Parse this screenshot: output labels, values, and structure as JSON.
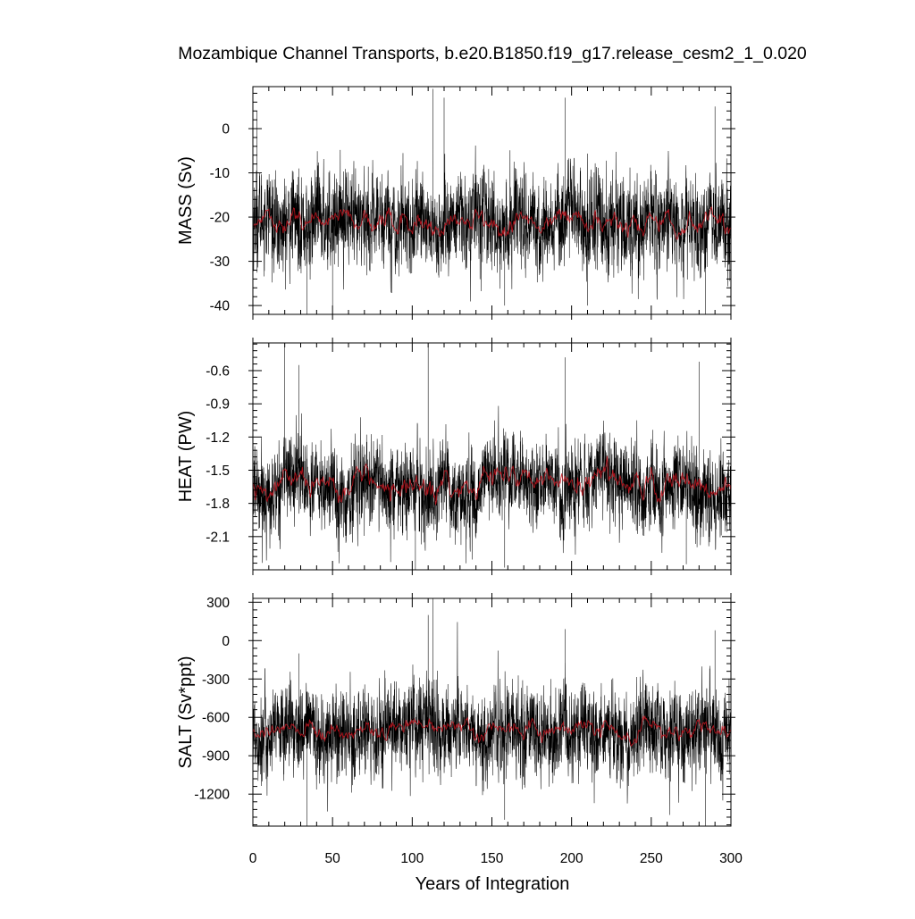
{
  "chart_data": {
    "type": "line",
    "title": "Mozambique Channel Transports, b.e20.B1850.f19_g17.release_cesm2_1_0.020",
    "xlabel": "Years of Integration",
    "xlim": [
      0,
      300
    ],
    "xticks": [
      0,
      50,
      100,
      150,
      200,
      250,
      300
    ],
    "xtick_labels": [
      "0",
      "50",
      "100",
      "150",
      "200",
      "250",
      "300"
    ],
    "grid": false,
    "legend": "none",
    "colors": {
      "raw": "#000000",
      "smoothed": "#c8141e",
      "axes": "#000000"
    },
    "panels": [
      {
        "ylabel": "MASS (Sv)",
        "ylim": [
          -42,
          9.5
        ],
        "yticks": [
          0,
          -10,
          -20,
          -30,
          -40
        ],
        "ytick_labels": [
          "0",
          "-10",
          "-20",
          "-30",
          "-40"
        ],
        "series": [
          {
            "style": "thin-black-monthly",
            "mean": -21,
            "noise": 5.5,
            "peaks": [
              [
                2.5,
                4
              ],
              [
                29,
                -9
              ],
              [
                113,
                9
              ],
              [
                120,
                7
              ],
              [
                196,
                7
              ],
              [
                290,
                5
              ]
            ],
            "troughs": [
              [
                34,
                -42
              ],
              [
                50,
                -40
              ],
              [
                158,
                -40
              ],
              [
                284,
                -42
              ],
              [
                210,
                -40
              ]
            ]
          },
          {
            "style": "red-smoothed",
            "mean": -21,
            "amplitude": 2.5
          }
        ]
      },
      {
        "ylabel": "HEAT (PW)",
        "ylim": [
          -2.4,
          -0.35
        ],
        "yticks": [
          -0.6,
          -0.9,
          -1.2,
          -1.5,
          -1.8,
          -2.1
        ],
        "ytick_labels": [
          "-0.6",
          "-0.9",
          "-1.2",
          "-1.5",
          "-1.8",
          "-2.1"
        ],
        "series": [
          {
            "style": "thin-black-monthly",
            "mean": -1.65,
            "noise": 0.2,
            "peaks": [
              [
                20,
                -0.35
              ],
              [
                29,
                -0.55
              ],
              [
                110,
                -0.38
              ],
              [
                196,
                -0.48
              ],
              [
                280,
                -0.52
              ]
            ],
            "troughs": [
              [
                102,
                -2.4
              ],
              [
                158,
                -2.38
              ],
              [
                272,
                -2.35
              ]
            ]
          },
          {
            "style": "red-smoothed",
            "mean": -1.62,
            "amplitude": 0.12
          }
        ]
      },
      {
        "ylabel": "SALT (Sv*ppt)",
        "ylim": [
          -1450,
          330
        ],
        "yticks": [
          300,
          0,
          -300,
          -600,
          -900,
          -1200
        ],
        "ytick_labels": [
          "300",
          "0",
          "-300",
          "-600",
          "-900",
          "-1200"
        ],
        "series": [
          {
            "style": "thin-black-monthly",
            "mean": -720,
            "noise": 180,
            "peaks": [
              [
                113,
                330
              ],
              [
                110,
                200
              ],
              [
                196,
                90
              ],
              [
                290,
                80
              ],
              [
                29,
                -100
              ]
            ],
            "troughs": [
              [
                34,
                -1450
              ],
              [
                284,
                -1450
              ],
              [
                158,
                -1400
              ]
            ]
          },
          {
            "style": "red-smoothed",
            "mean": -700,
            "amplitude": 70
          }
        ]
      }
    ]
  }
}
